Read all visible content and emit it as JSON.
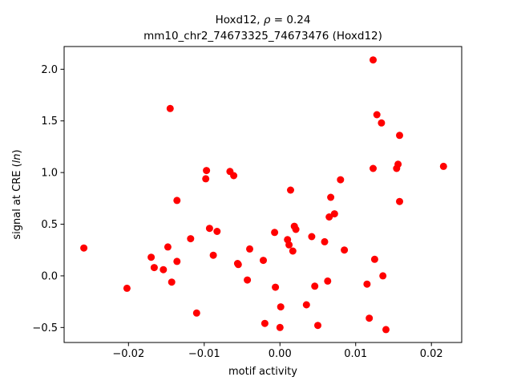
{
  "chart_data": {
    "type": "scatter",
    "title_line1_prefix": "Hoxd12, ",
    "title_line1_rho": "ρ",
    "title_line1_suffix": " = 0.24",
    "title_line2": "mm10_chr2_74673325_74673476 (Hoxd12)",
    "xlabel": "motif activity",
    "ylabel_prefix": "signal at CRE (",
    "ylabel_italic": "ln",
    "ylabel_suffix": ")",
    "xlim": [
      -0.0285,
      0.024
    ],
    "ylim": [
      -0.645,
      2.22
    ],
    "xticks": [
      {
        "value": -0.02,
        "label": "−0.02"
      },
      {
        "value": -0.01,
        "label": "−0.01"
      },
      {
        "value": 0.0,
        "label": "0.00"
      },
      {
        "value": 0.01,
        "label": "0.01"
      },
      {
        "value": 0.02,
        "label": "0.02"
      }
    ],
    "yticks": [
      {
        "value": -0.5,
        "label": "−0.5"
      },
      {
        "value": 0.0,
        "label": "0.0"
      },
      {
        "value": 0.5,
        "label": "0.5"
      },
      {
        "value": 1.0,
        "label": "1.0"
      },
      {
        "value": 1.5,
        "label": "1.5"
      },
      {
        "value": 2.0,
        "label": "2.0"
      }
    ],
    "grid": false,
    "marker_color": "#ff0000",
    "points": [
      {
        "x": -0.0259,
        "y": 0.27
      },
      {
        "x": -0.0202,
        "y": -0.12
      },
      {
        "x": -0.017,
        "y": 0.18
      },
      {
        "x": -0.0166,
        "y": 0.08
      },
      {
        "x": -0.0154,
        "y": 0.06
      },
      {
        "x": -0.0148,
        "y": 0.28
      },
      {
        "x": -0.0145,
        "y": 1.62
      },
      {
        "x": -0.0143,
        "y": -0.06
      },
      {
        "x": -0.0136,
        "y": 0.14
      },
      {
        "x": -0.0136,
        "y": 0.73
      },
      {
        "x": -0.0118,
        "y": 0.36
      },
      {
        "x": -0.011,
        "y": -0.36
      },
      {
        "x": -0.0098,
        "y": 0.94
      },
      {
        "x": -0.0097,
        "y": 1.02
      },
      {
        "x": -0.0093,
        "y": 0.46
      },
      {
        "x": -0.0088,
        "y": 0.2
      },
      {
        "x": -0.0083,
        "y": 0.43
      },
      {
        "x": -0.0066,
        "y": 1.01
      },
      {
        "x": -0.0061,
        "y": 0.97
      },
      {
        "x": -0.0056,
        "y": 0.12
      },
      {
        "x": -0.0055,
        "y": 0.11
      },
      {
        "x": -0.0043,
        "y": -0.04
      },
      {
        "x": -0.004,
        "y": 0.26
      },
      {
        "x": -0.0022,
        "y": 0.15
      },
      {
        "x": -0.002,
        "y": -0.46
      },
      {
        "x": -0.0007,
        "y": 0.42
      },
      {
        "x": -0.0006,
        "y": -0.11
      },
      {
        "x": 0.0001,
        "y": -0.3
      },
      {
        "x": 0.0,
        "y": -0.5
      },
      {
        "x": 0.001,
        "y": 0.35
      },
      {
        "x": 0.0012,
        "y": 0.3
      },
      {
        "x": 0.0014,
        "y": 0.83
      },
      {
        "x": 0.0017,
        "y": 0.24
      },
      {
        "x": 0.0019,
        "y": 0.48
      },
      {
        "x": 0.0021,
        "y": 0.45
      },
      {
        "x": 0.0035,
        "y": -0.28
      },
      {
        "x": 0.0042,
        "y": 0.38
      },
      {
        "x": 0.0046,
        "y": -0.1
      },
      {
        "x": 0.005,
        "y": -0.48
      },
      {
        "x": 0.0059,
        "y": 0.33
      },
      {
        "x": 0.0063,
        "y": -0.05
      },
      {
        "x": 0.0065,
        "y": 0.57
      },
      {
        "x": 0.0067,
        "y": 0.76
      },
      {
        "x": 0.0072,
        "y": 0.6
      },
      {
        "x": 0.008,
        "y": 0.93
      },
      {
        "x": 0.0085,
        "y": 0.25
      },
      {
        "x": 0.0115,
        "y": -0.08
      },
      {
        "x": 0.0118,
        "y": -0.41
      },
      {
        "x": 0.0123,
        "y": 2.09
      },
      {
        "x": 0.0123,
        "y": 1.04
      },
      {
        "x": 0.0125,
        "y": 0.16
      },
      {
        "x": 0.0128,
        "y": 1.56
      },
      {
        "x": 0.0134,
        "y": 1.48
      },
      {
        "x": 0.0136,
        "y": 0.0
      },
      {
        "x": 0.014,
        "y": -0.52
      },
      {
        "x": 0.0154,
        "y": 1.04
      },
      {
        "x": 0.0156,
        "y": 1.08
      },
      {
        "x": 0.0158,
        "y": 0.72
      },
      {
        "x": 0.0158,
        "y": 1.36
      },
      {
        "x": 0.0216,
        "y": 1.06
      }
    ]
  }
}
